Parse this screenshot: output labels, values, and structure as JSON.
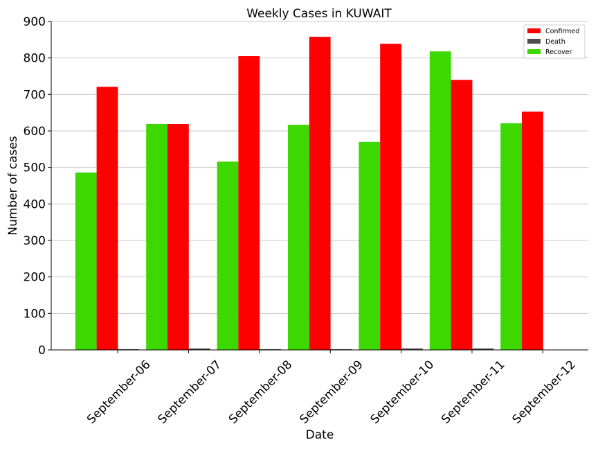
{
  "chart_data": {
    "type": "bar",
    "title": "Weekly Cases in KUWAIT",
    "xlabel": "Date",
    "ylabel": "Number of cases",
    "categories": [
      "September-06",
      "September-07",
      "September-08",
      "September-09",
      "September-10",
      "September-11",
      "September-12"
    ],
    "series": [
      {
        "name": "Recover",
        "color": "#3dd800",
        "values": [
          486,
          619,
          516,
          617,
          570,
          818,
          621
        ]
      },
      {
        "name": "Confirmed",
        "color": "#ff0000",
        "values": [
          721,
          619,
          805,
          858,
          839,
          740,
          653
        ]
      },
      {
        "name": "Death",
        "color": "#4d4d4d",
        "values": [
          2,
          4,
          2,
          2,
          4,
          4,
          0
        ]
      }
    ],
    "legend_order": [
      "Confirmed",
      "Death",
      "Recover"
    ],
    "yticks": [
      0,
      100,
      200,
      300,
      400,
      500,
      600,
      700,
      800,
      900
    ],
    "ylim": [
      0,
      900
    ],
    "grid": "horizontal",
    "legend_position": "top-right"
  }
}
